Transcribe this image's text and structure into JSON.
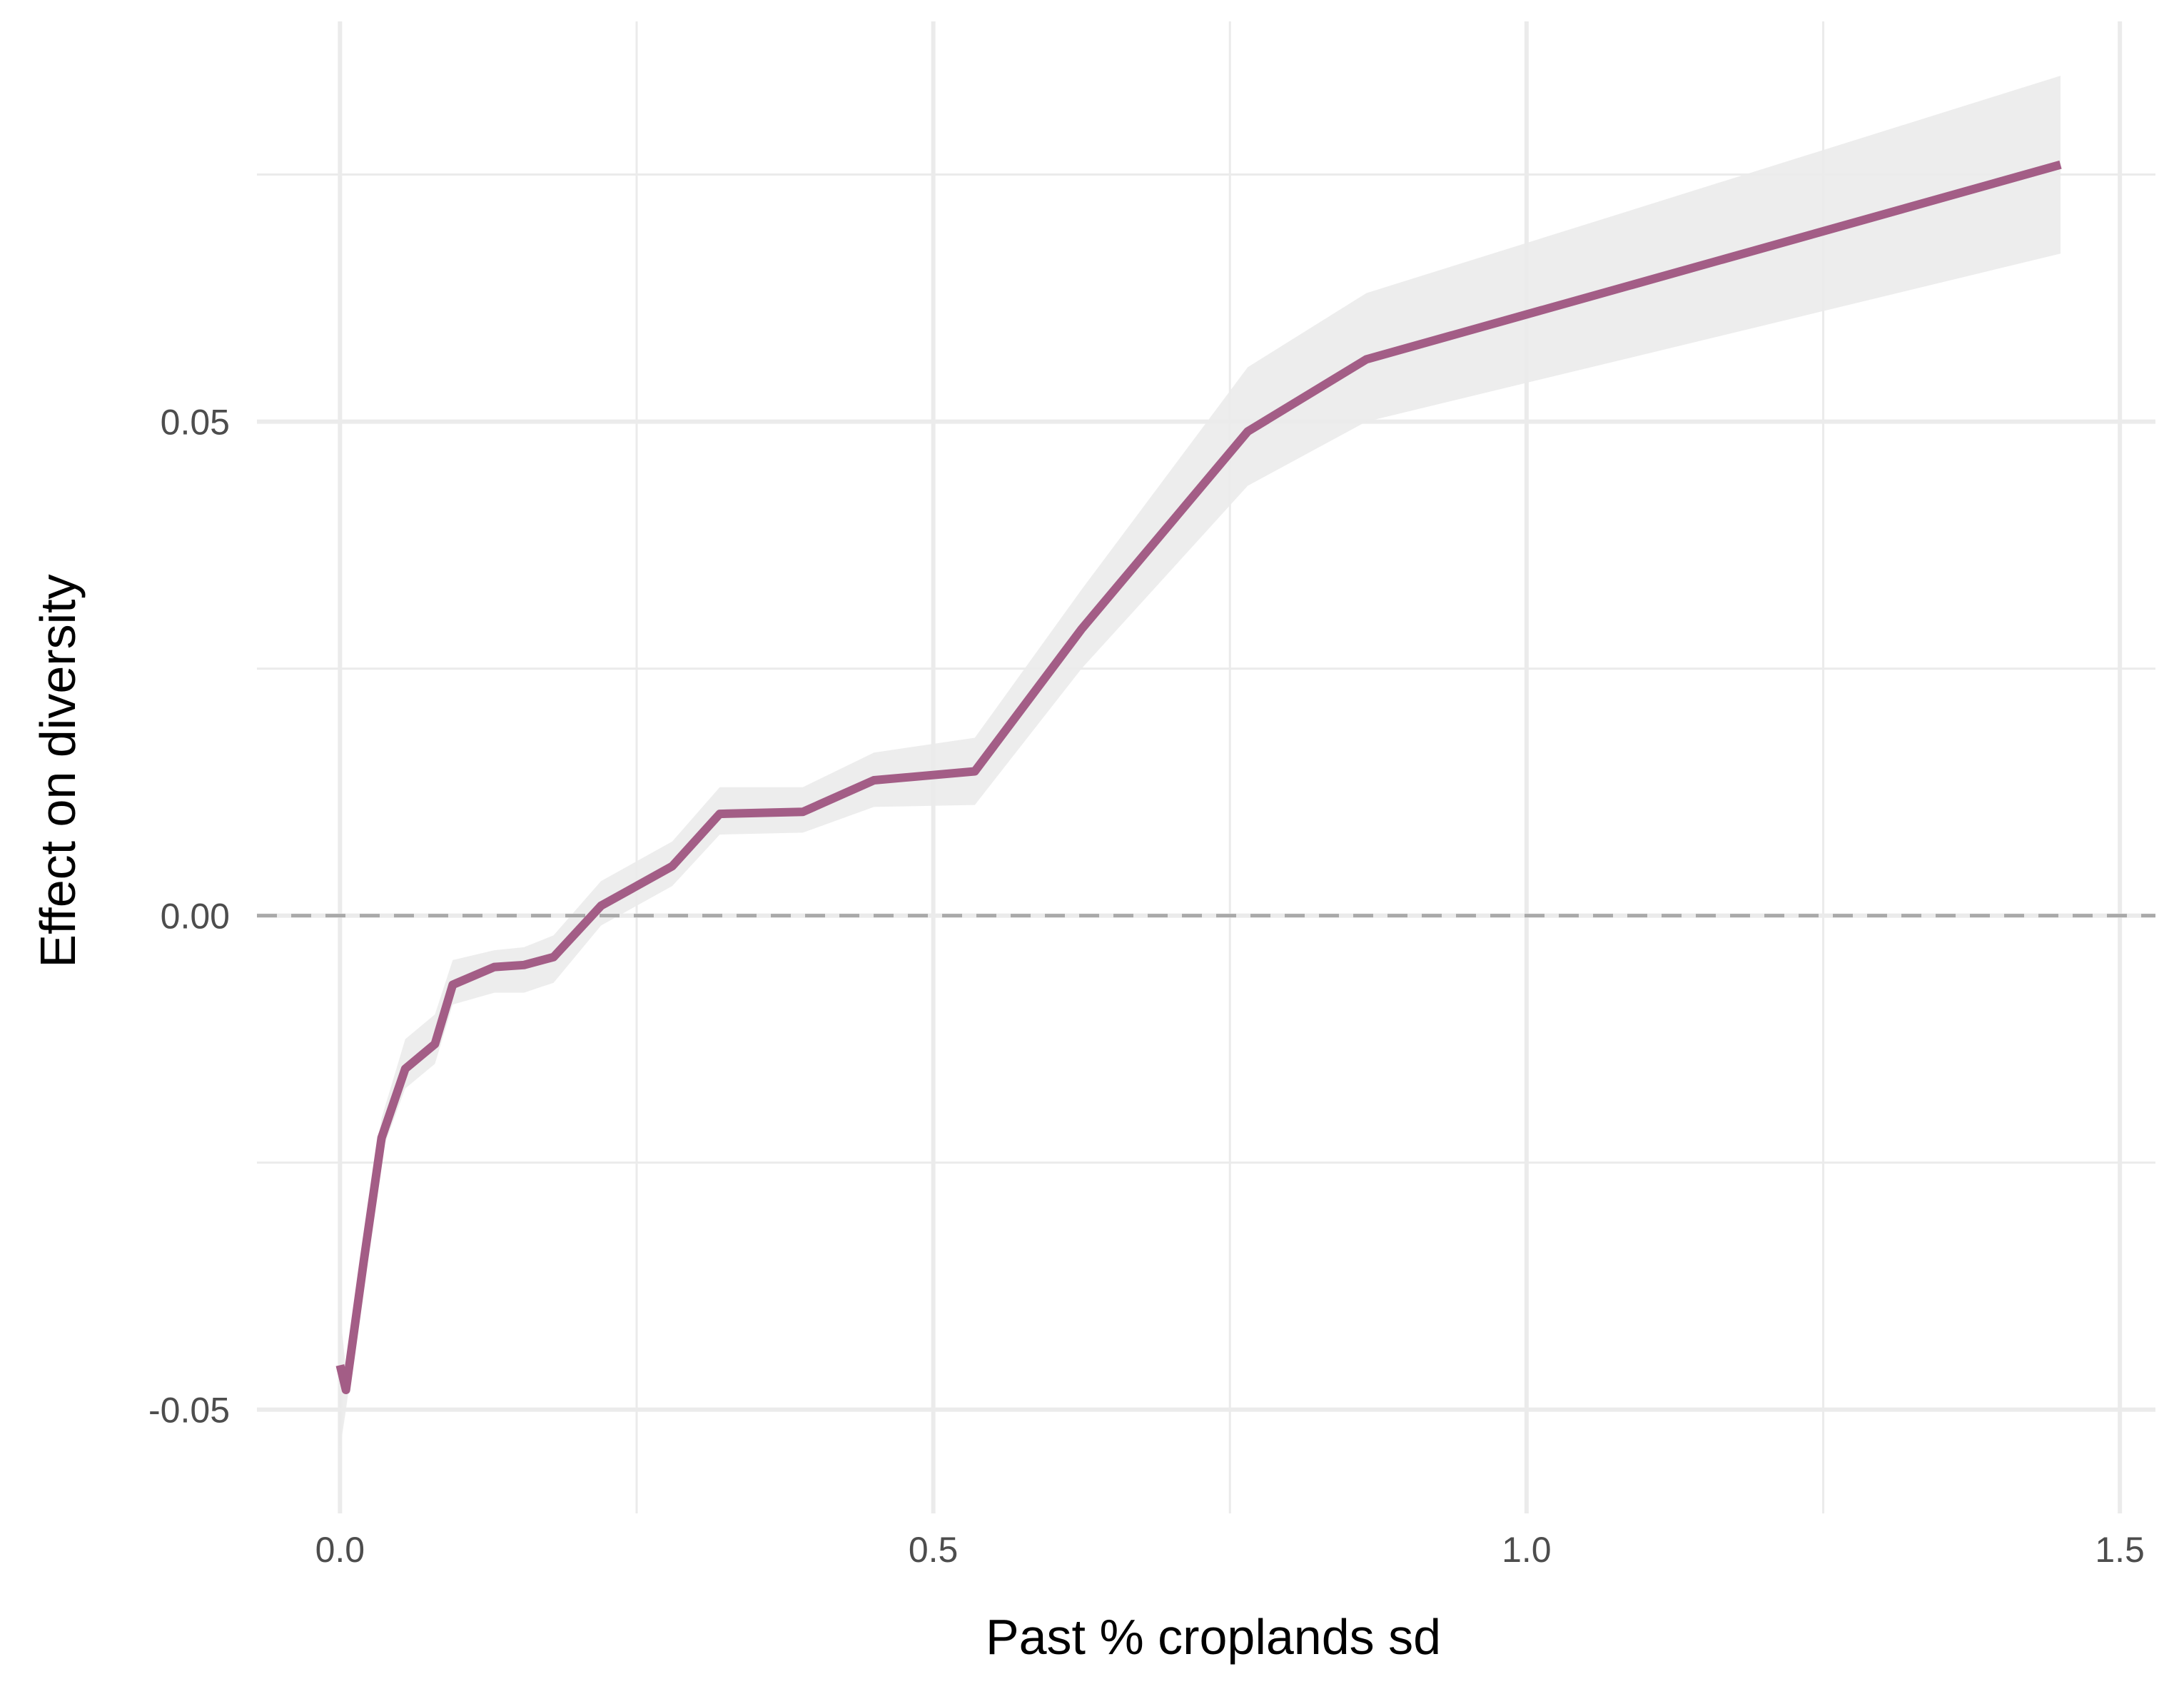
{
  "chart_data": {
    "type": "line",
    "title": "",
    "xlabel": "Past % croplands sd",
    "ylabel": "Effect on diversity",
    "xlim": [
      -0.07,
      1.53
    ],
    "ylim": [
      -0.0605,
      0.0905
    ],
    "x_ticks": [
      0.0,
      0.5,
      1.0,
      1.5
    ],
    "x_tick_labels": [
      "0.0",
      "0.5",
      "1.0",
      "1.5"
    ],
    "x_minor_ticks": [
      0.25,
      0.75,
      1.25
    ],
    "y_ticks": [
      -0.05,
      0.0,
      0.05
    ],
    "y_tick_labels": [
      "-0.05",
      "0.00",
      "0.05"
    ],
    "y_minor_ticks": [
      -0.025,
      0.025,
      0.075
    ],
    "grid": true,
    "legend": "none",
    "reference_line": {
      "y": 0.0,
      "style": "dashed",
      "color": "#a9a9a9"
    },
    "colors": {
      "line": "#a35d86",
      "ribbon": "#ebebeb",
      "grid": "#ebebeb"
    },
    "series": [
      {
        "x": [
          0.0,
          0.005,
          0.02,
          0.035,
          0.055,
          0.08,
          0.095,
          0.13,
          0.155,
          0.18,
          0.22,
          0.28,
          0.32,
          0.39,
          0.45,
          0.535,
          0.625,
          0.765,
          0.865,
          1.45
        ],
        "y": [
          -0.0455,
          -0.048,
          -0.035,
          -0.0225,
          -0.0155,
          -0.013,
          -0.007,
          -0.0052,
          -0.005,
          -0.0042,
          0.001,
          0.005,
          0.0103,
          0.0105,
          0.0137,
          0.0146,
          0.029,
          0.049,
          0.0563,
          0.076
        ],
        "lower": [
          -0.054,
          -0.05,
          -0.037,
          -0.024,
          -0.0175,
          -0.015,
          -0.009,
          -0.0078,
          -0.0078,
          -0.0068,
          -0.001,
          0.003,
          0.0082,
          0.0084,
          0.011,
          0.0112,
          0.025,
          0.0435,
          0.05,
          0.067
        ],
        "upper": [
          -0.04,
          -0.046,
          -0.032,
          -0.0205,
          -0.0125,
          -0.01,
          -0.0045,
          -0.0035,
          -0.0032,
          -0.002,
          0.0035,
          0.0075,
          0.013,
          0.013,
          0.0165,
          0.018,
          0.033,
          0.0555,
          0.063,
          0.085
        ]
      }
    ]
  }
}
